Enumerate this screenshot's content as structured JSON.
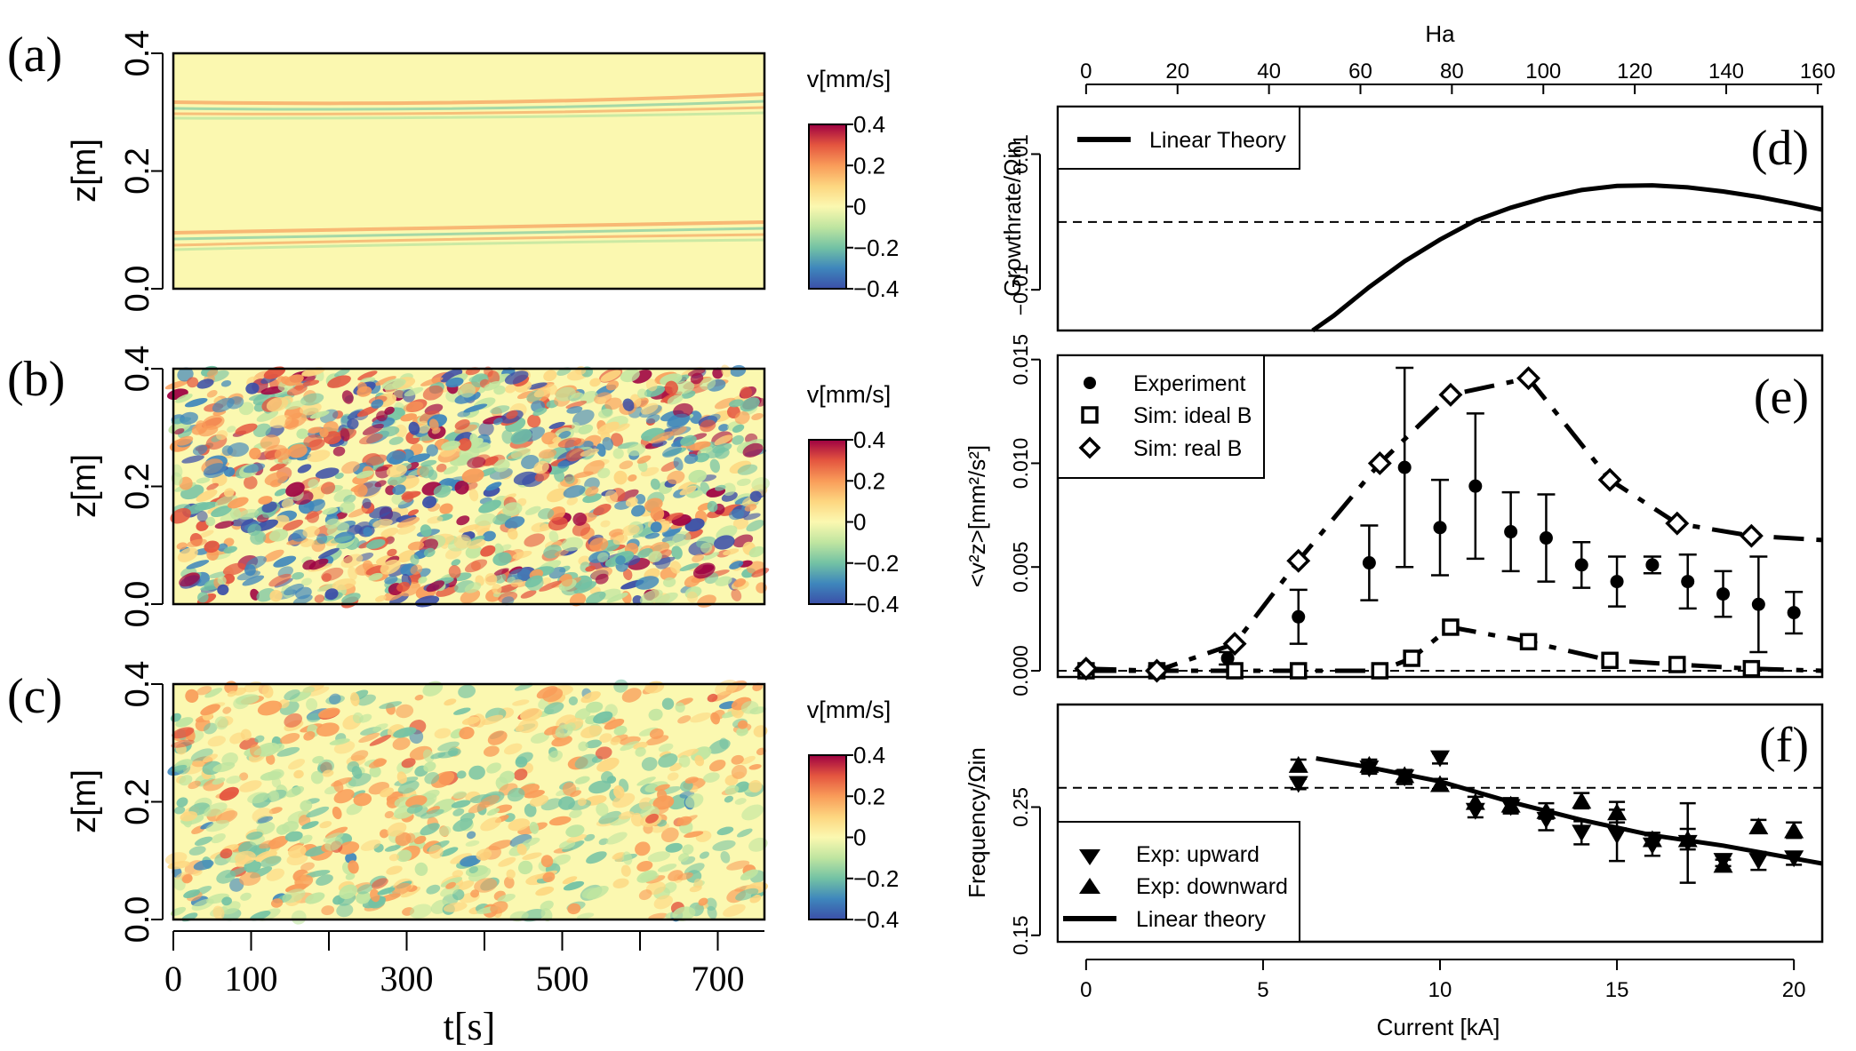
{
  "colors": {
    "cmap": [
      "#3b4fa8",
      "#3e86bc",
      "#73c2a4",
      "#bfe5a0",
      "#fbf8b0",
      "#fdd680",
      "#f99c59",
      "#e4553f",
      "#9e0142"
    ],
    "background": "#ffffff",
    "line": "#000000"
  },
  "left_panels": {
    "colorbar_title": "v[mm/s]",
    "colorbar_ticks": [
      "0.4",
      "0.2",
      "0",
      "−0.2",
      "−0.4"
    ],
    "z_label": "z[m]",
    "z_ticks": [
      "0.0",
      "0.2",
      "0.4"
    ],
    "t_label": "t[s]",
    "t_tick_labels": [
      "0",
      "100",
      "300",
      "500",
      "700"
    ],
    "panels": [
      {
        "tag": "(a)",
        "pattern": "bands"
      },
      {
        "tag": "(b)",
        "pattern": "turbulent"
      },
      {
        "tag": "(c)",
        "pattern": "weak"
      }
    ]
  },
  "chart_data": [
    {
      "type": "line",
      "panel": "(d)",
      "xlabel_top": "Ha",
      "ha_ticks": [
        0,
        20,
        40,
        60,
        80,
        100,
        120,
        140,
        160
      ],
      "ylabel": "Growthrate/Ωin",
      "yticks": [
        "−0.01",
        "0.01"
      ],
      "ylim": [
        -0.016,
        0.017
      ],
      "xlim": [
        -0.8,
        20.8
      ],
      "legend": [
        "Linear Theory"
      ],
      "series": [
        {
          "name": "Linear Theory",
          "x": [
            6.4,
            7,
            8,
            9,
            10,
            11,
            12,
            13,
            14,
            15,
            16,
            17,
            18,
            19,
            20,
            20.8
          ],
          "y": [
            -0.016,
            -0.0138,
            -0.0096,
            -0.0058,
            -0.0026,
            0.0002,
            0.0021,
            0.0036,
            0.0047,
            0.0053,
            0.0054,
            0.0051,
            0.0045,
            0.0037,
            0.0027,
            0.0018
          ]
        }
      ],
      "reference_line": 0
    },
    {
      "type": "scatter",
      "panel": "(e)",
      "ylabel": "<v²z>[mm²/s²]",
      "yticks": [
        "0.000",
        "0.005",
        "0.010",
        "0.015"
      ],
      "ylim": [
        -0.0003,
        0.0152
      ],
      "xlim": [
        -0.8,
        20.8
      ],
      "legend": [
        "Experiment",
        "Sim: ideal B",
        "Sim: real B"
      ],
      "experiment": {
        "x": [
          0,
          2,
          4,
          6,
          8,
          9,
          10,
          11,
          12,
          13,
          14,
          15,
          16,
          17,
          18,
          19,
          20
        ],
        "y": [
          0.0001,
          0.0001,
          0.0006,
          0.0026,
          0.0052,
          0.0098,
          0.0069,
          0.0089,
          0.0067,
          0.0064,
          0.0051,
          0.0043,
          0.0051,
          0.0043,
          0.0037,
          0.0032,
          0.0028
        ],
        "err": [
          0.0001,
          0.0001,
          0.0003,
          0.0013,
          0.0018,
          0.0048,
          0.0023,
          0.0035,
          0.0019,
          0.0021,
          0.0011,
          0.0012,
          0.0004,
          0.0013,
          0.0011,
          0.0023,
          0.001
        ]
      },
      "sim_ideal": {
        "x": [
          0,
          2,
          4.2,
          6,
          8.3,
          9.2,
          10.3,
          12.5,
          14.8,
          16.7,
          18.8,
          20.8
        ],
        "y": [
          0,
          0,
          0,
          0,
          0,
          0.0006,
          0.0021,
          0.0014,
          0.0005,
          0.0003,
          0.0001,
          0
        ]
      },
      "sim_real": {
        "x": [
          0,
          2,
          4.2,
          6,
          8.3,
          10.3,
          12.5,
          14.8,
          16.7,
          18.8,
          20.8
        ],
        "y": [
          0.0001,
          0,
          0.0013,
          0.0053,
          0.01,
          0.0133,
          0.0141,
          0.0092,
          0.0071,
          0.0065,
          0.0063
        ]
      },
      "reference_line": 0
    },
    {
      "type": "scatter",
      "panel": "(f)",
      "ylabel": "Frequency/Ωin",
      "yticks": [
        "0.15",
        "0.25"
      ],
      "ylim": [
        0.145,
        0.33
      ],
      "xlim": [
        -0.8,
        20.8
      ],
      "xlabel": "Current [kA]",
      "xticks": [
        0,
        5,
        10,
        15,
        20
      ],
      "legend": [
        "Exp: upward",
        "Exp: downward",
        "Linear theory"
      ],
      "exp_upward": {
        "x": [
          6,
          8,
          9,
          10,
          11,
          12,
          13,
          14,
          15,
          16,
          17,
          18,
          19,
          20
        ],
        "y": [
          0.268,
          0.28,
          0.273,
          0.288,
          0.247,
          0.25,
          0.24,
          0.23,
          0.228,
          0.22,
          0.222,
          0.208,
          0.208,
          0.21
        ],
        "err": [
          0.004,
          0.004,
          0.005,
          0.004,
          0.005,
          0.005,
          0.008,
          0.009,
          0.02,
          0.008,
          0.031,
          0.004,
          0.007,
          0.005
        ]
      },
      "exp_downward": {
        "x": [
          6,
          8,
          9,
          10,
          11,
          12,
          13,
          14,
          15,
          16,
          17,
          18,
          19,
          20
        ],
        "y": [
          0.283,
          0.283,
          0.275,
          0.268,
          0.254,
          0.252,
          0.247,
          0.255,
          0.246,
          0.225,
          0.225,
          0.205,
          0.235,
          0.232
        ],
        "err": [
          0.004,
          0.004,
          0.004,
          0.004,
          0.004,
          0.005,
          0.006,
          0.006,
          0.008,
          0.005,
          0.008,
          0.004,
          0.005,
          0.006
        ]
      },
      "linear_theory": {
        "x": [
          6.5,
          8,
          10,
          12,
          14,
          16,
          18,
          20.8
        ],
        "y": [
          0.288,
          0.281,
          0.27,
          0.254,
          0.24,
          0.228,
          0.22,
          0.206
        ]
      },
      "reference_line": 0.265
    }
  ],
  "panel_tags": [
    "(d)",
    "(e)",
    "(f)"
  ]
}
